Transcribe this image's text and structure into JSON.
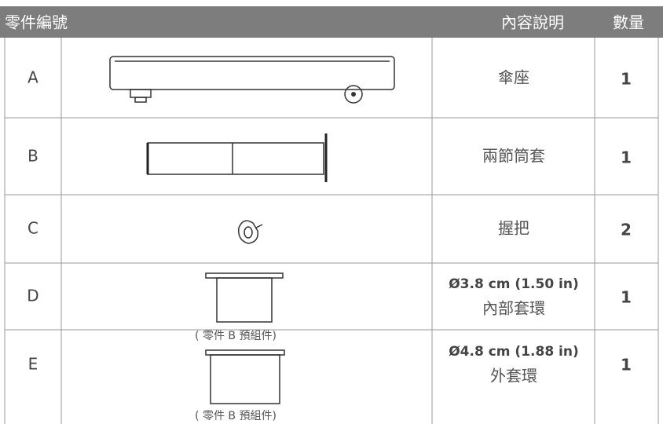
{
  "header": {
    "columns": [
      "零件編號",
      "內容說明",
      "數量"
    ]
  },
  "rows": [
    {
      "id": "A",
      "description": [
        "傘座"
      ],
      "qty": "1"
    },
    {
      "id": "B",
      "description": [
        "兩節筒套"
      ],
      "qty": "1"
    },
    {
      "id": "C",
      "description": [
        "握把"
      ],
      "qty": "2"
    },
    {
      "id": "D",
      "description": [
        "Ø3.8 cm (1.50 in)",
        "內部套環"
      ],
      "note": "( 零件 B 預組件)",
      "qty": "1"
    },
    {
      "id": "E",
      "description": [
        "Ø4.8 cm (1.88 in)",
        "外套環"
      ],
      "note": "( 零件 B 預組件)",
      "qty": "1"
    }
  ]
}
